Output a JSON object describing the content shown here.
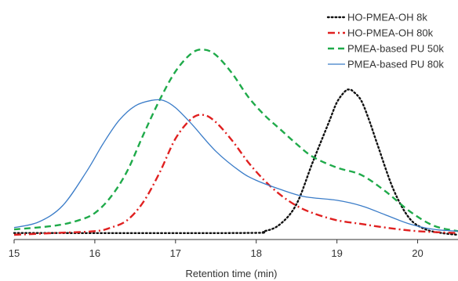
{
  "chart_data": {
    "type": "line",
    "xlabel": "Retention time (min)",
    "ylabel": "",
    "xlim": [
      15,
      20.5
    ],
    "ylim": [
      0,
      1
    ],
    "xticks": [
      15,
      16,
      17,
      18,
      19,
      20
    ],
    "xtick_labels": [
      "15",
      "16",
      "17",
      "18",
      "19",
      "20"
    ],
    "grid": false,
    "legend_position": "top-right",
    "series": [
      {
        "name": "HO-PMEA-OH 8k",
        "color": "#111111",
        "dash": "dotted",
        "x": [
          15.0,
          17.8,
          18.1,
          18.3,
          18.5,
          18.7,
          18.9,
          19.0,
          19.1,
          19.15,
          19.2,
          19.3,
          19.4,
          19.5,
          19.7,
          19.9,
          20.1,
          20.3,
          20.5
        ],
        "y": [
          0.01,
          0.01,
          0.02,
          0.06,
          0.17,
          0.4,
          0.62,
          0.73,
          0.79,
          0.8,
          0.79,
          0.74,
          0.63,
          0.5,
          0.25,
          0.09,
          0.03,
          0.01,
          0.0
        ]
      },
      {
        "name": "HO-PMEA-OH 80k",
        "color": "#e02020",
        "dash": "dashdot",
        "x": [
          15.0,
          15.5,
          16.0,
          16.2,
          16.4,
          16.6,
          16.8,
          17.0,
          17.2,
          17.35,
          17.5,
          17.7,
          17.9,
          18.1,
          18.3,
          18.5,
          18.7,
          19.0,
          19.3,
          19.6,
          20.0,
          20.5
        ],
        "y": [
          0.0,
          0.01,
          0.02,
          0.04,
          0.08,
          0.18,
          0.34,
          0.53,
          0.64,
          0.66,
          0.62,
          0.52,
          0.4,
          0.3,
          0.22,
          0.16,
          0.12,
          0.08,
          0.06,
          0.04,
          0.02,
          0.01
        ]
      },
      {
        "name": "PMEA-based PU 50k",
        "color": "#1faa4a",
        "dash": "dashed",
        "x": [
          15.0,
          15.5,
          15.8,
          16.0,
          16.2,
          16.4,
          16.6,
          16.8,
          17.0,
          17.2,
          17.35,
          17.5,
          17.7,
          17.9,
          18.1,
          18.3,
          18.5,
          18.7,
          19.0,
          19.3,
          19.6,
          19.9,
          20.2,
          20.5
        ],
        "y": [
          0.03,
          0.05,
          0.08,
          0.12,
          0.21,
          0.35,
          0.55,
          0.74,
          0.9,
          1.0,
          1.02,
          0.99,
          0.89,
          0.76,
          0.66,
          0.58,
          0.5,
          0.43,
          0.37,
          0.33,
          0.24,
          0.13,
          0.05,
          0.02
        ]
      },
      {
        "name": "PMEA-based PU 80k",
        "color": "#3a7cc8",
        "dash": "solid",
        "x": [
          15.0,
          15.3,
          15.6,
          15.9,
          16.1,
          16.3,
          16.5,
          16.7,
          16.85,
          17.0,
          17.2,
          17.5,
          17.8,
          18.0,
          18.3,
          18.6,
          19.0,
          19.3,
          19.6,
          19.9,
          20.2,
          20.5
        ],
        "y": [
          0.04,
          0.07,
          0.16,
          0.35,
          0.5,
          0.63,
          0.71,
          0.74,
          0.74,
          0.7,
          0.61,
          0.46,
          0.35,
          0.3,
          0.25,
          0.21,
          0.19,
          0.16,
          0.11,
          0.06,
          0.03,
          0.02
        ]
      }
    ]
  }
}
